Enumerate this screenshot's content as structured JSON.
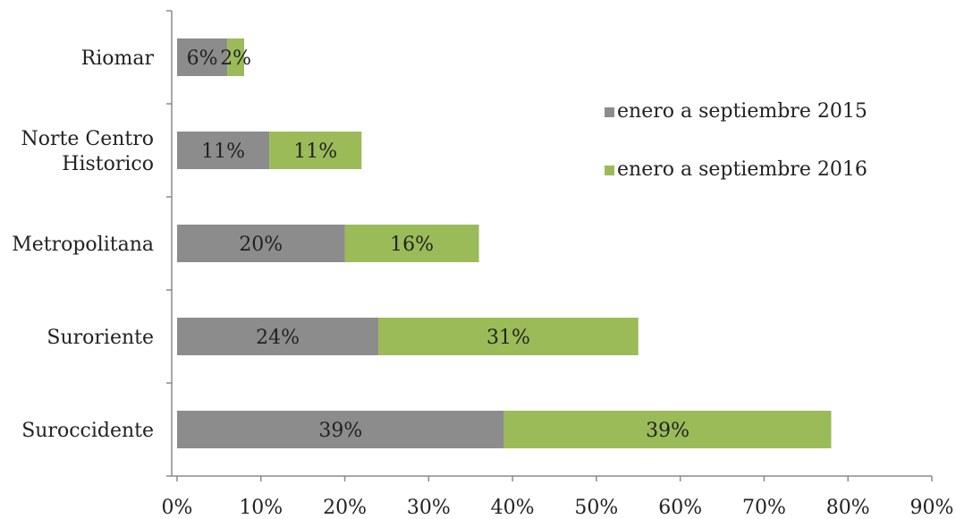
{
  "chart_data": {
    "type": "bar",
    "orientation": "horizontal",
    "stacked": true,
    "categories": [
      "Riomar",
      "Norte Centro Historico",
      "Metropolitana",
      "Suroriente",
      "Suroccidente"
    ],
    "category_label_lines": [
      [
        "Riomar"
      ],
      [
        "Norte Centro",
        "Historico"
      ],
      [
        "Metropolitana"
      ],
      [
        "Suroriente"
      ],
      [
        "Suroccidente"
      ]
    ],
    "series": [
      {
        "name": "enero a septiembre 2015",
        "color": "#8c8c8c",
        "values": [
          6,
          11,
          20,
          24,
          39
        ],
        "labels": [
          "6%",
          "11%",
          "20%",
          "24%",
          "39%"
        ]
      },
      {
        "name": "enero a septiembre 2016",
        "color": "#9bbb59",
        "values": [
          2,
          11,
          16,
          31,
          39
        ],
        "labels": [
          "2%",
          "11%",
          "16%",
          "31%",
          "39%"
        ]
      }
    ],
    "xlim": [
      0,
      90
    ],
    "x_ticks": [
      0,
      10,
      20,
      30,
      40,
      50,
      60,
      70,
      80,
      90
    ],
    "x_tick_labels": [
      "0%",
      "10%",
      "20%",
      "30%",
      "40%",
      "50%",
      "60%",
      "70%",
      "80%",
      "90%"
    ],
    "title": "",
    "xlabel": "",
    "ylabel": "",
    "grid": false,
    "legend_position": "right"
  }
}
